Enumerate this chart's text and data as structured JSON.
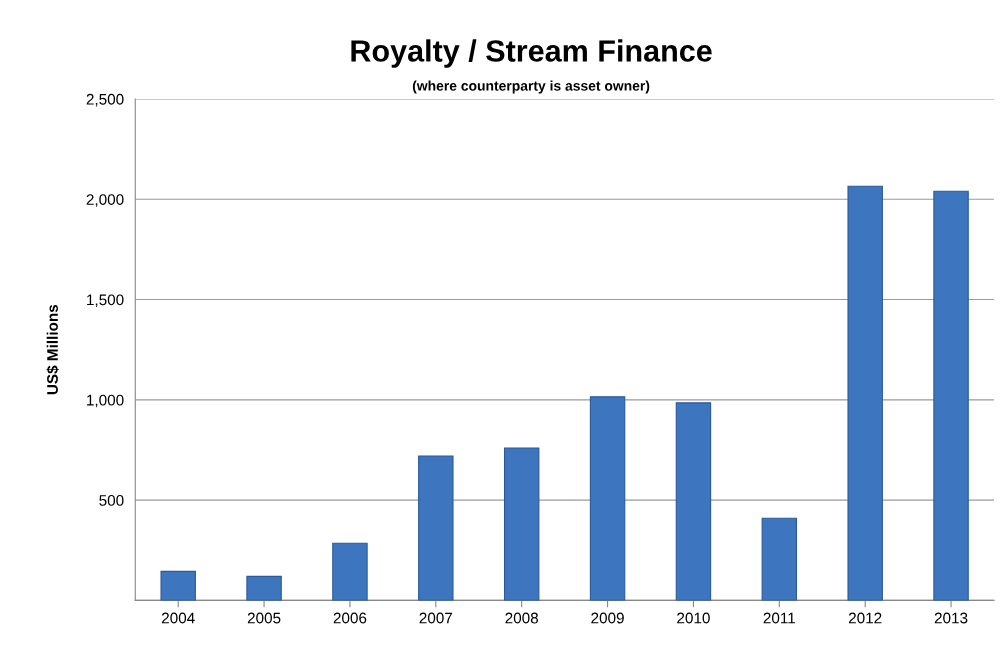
{
  "chart_data": {
    "type": "bar",
    "title": "Royalty / Stream Finance",
    "subtitle": "(where counterparty is asset owner)",
    "ylabel": "US$ Millions",
    "categories": [
      "2004",
      "2005",
      "2006",
      "2007",
      "2008",
      "2009",
      "2010",
      "2011",
      "2012",
      "2013"
    ],
    "values": [
      145,
      120,
      285,
      720,
      760,
      1015,
      985,
      410,
      2065,
      2040
    ],
    "color": "#3d76bf",
    "ylim": [
      0,
      2500
    ],
    "yticks": [
      {
        "value": 0,
        "label": null
      },
      {
        "value": 500,
        "label": "500"
      },
      {
        "value": 1000,
        "label": "1,000"
      },
      {
        "value": 1500,
        "label": "1,500"
      },
      {
        "value": 2000,
        "label": "2,000"
      },
      {
        "value": 2500,
        "label": "2,500"
      }
    ],
    "grid": "y",
    "legend": false
  }
}
